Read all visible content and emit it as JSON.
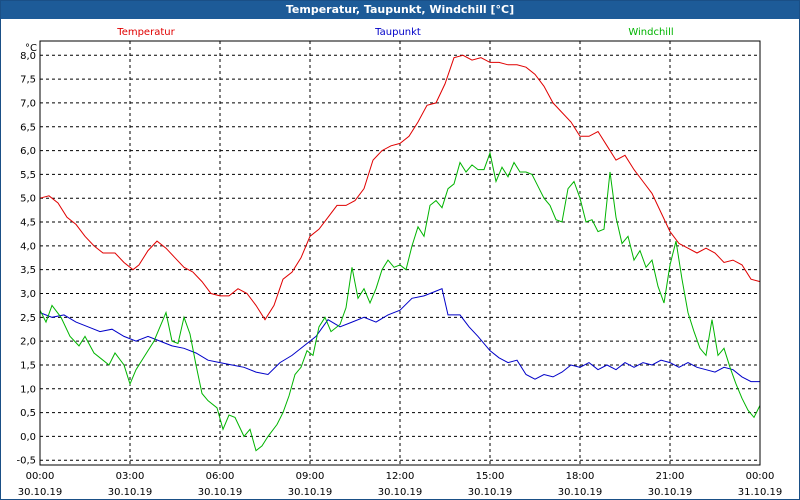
{
  "window": {
    "title": "Temperatur, Taupunkt, Windchill [°C]"
  },
  "chart_data": {
    "type": "line",
    "ylabel": "°C",
    "ylim": [
      -0.6,
      8.3
    ],
    "y_ticks": [
      "8,0",
      "7,5",
      "7,0",
      "6,5",
      "6,0",
      "5,5",
      "5,0",
      "4,5",
      "4,0",
      "3,5",
      "3,0",
      "2,5",
      "2,0",
      "1,5",
      "1,0",
      "0,5",
      "0,0",
      "-0,5"
    ],
    "y_tick_values": [
      8.0,
      7.5,
      7.0,
      6.5,
      6.0,
      5.5,
      5.0,
      4.5,
      4.0,
      3.5,
      3.0,
      2.5,
      2.0,
      1.5,
      1.0,
      0.5,
      0.0,
      -0.5
    ],
    "xlim": [
      0,
      24
    ],
    "x_ticks": [
      {
        "time": "00:00",
        "date": "30.10.19",
        "h": 0
      },
      {
        "time": "03:00",
        "date": "30.10.19",
        "h": 3
      },
      {
        "time": "06:00",
        "date": "30.10.19",
        "h": 6
      },
      {
        "time": "09:00",
        "date": "30.10.19",
        "h": 9
      },
      {
        "time": "12:00",
        "date": "30.10.19",
        "h": 12
      },
      {
        "time": "15:00",
        "date": "30.10.19",
        "h": 15
      },
      {
        "time": "18:00",
        "date": "30.10.19",
        "h": 18
      },
      {
        "time": "21:00",
        "date": "30.10.19",
        "h": 21
      },
      {
        "time": "00:00",
        "date": "31.10.19",
        "h": 24
      }
    ],
    "grid": true,
    "legend_position": "top",
    "series": [
      {
        "name": "Temperatur",
        "color": "#e00000",
        "points": [
          [
            0,
            5.0
          ],
          [
            0.3,
            5.05
          ],
          [
            0.6,
            4.9
          ],
          [
            0.9,
            4.6
          ],
          [
            1.2,
            4.45
          ],
          [
            1.5,
            4.2
          ],
          [
            1.8,
            4.0
          ],
          [
            2.1,
            3.85
          ],
          [
            2.5,
            3.85
          ],
          [
            2.8,
            3.65
          ],
          [
            3.1,
            3.5
          ],
          [
            3.3,
            3.6
          ],
          [
            3.6,
            3.9
          ],
          [
            3.9,
            4.1
          ],
          [
            4.2,
            3.95
          ],
          [
            4.5,
            3.75
          ],
          [
            4.8,
            3.55
          ],
          [
            5.1,
            3.45
          ],
          [
            5.4,
            3.25
          ],
          [
            5.7,
            3.0
          ],
          [
            6.0,
            2.95
          ],
          [
            6.3,
            2.95
          ],
          [
            6.6,
            3.1
          ],
          [
            6.9,
            3.0
          ],
          [
            7.2,
            2.75
          ],
          [
            7.5,
            2.45
          ],
          [
            7.8,
            2.75
          ],
          [
            8.1,
            3.3
          ],
          [
            8.4,
            3.45
          ],
          [
            8.7,
            3.75
          ],
          [
            9.0,
            4.2
          ],
          [
            9.3,
            4.35
          ],
          [
            9.6,
            4.6
          ],
          [
            9.9,
            4.85
          ],
          [
            10.2,
            4.85
          ],
          [
            10.5,
            4.95
          ],
          [
            10.8,
            5.2
          ],
          [
            11.1,
            5.8
          ],
          [
            11.4,
            6.0
          ],
          [
            11.7,
            6.1
          ],
          [
            12.0,
            6.15
          ],
          [
            12.3,
            6.3
          ],
          [
            12.6,
            6.6
          ],
          [
            12.9,
            6.95
          ],
          [
            13.2,
            7.0
          ],
          [
            13.5,
            7.4
          ],
          [
            13.8,
            7.95
          ],
          [
            14.1,
            8.0
          ],
          [
            14.4,
            7.9
          ],
          [
            14.7,
            7.95
          ],
          [
            15.0,
            7.85
          ],
          [
            15.3,
            7.85
          ],
          [
            15.6,
            7.8
          ],
          [
            15.9,
            7.8
          ],
          [
            16.2,
            7.75
          ],
          [
            16.5,
            7.6
          ],
          [
            16.8,
            7.35
          ],
          [
            17.1,
            7.0
          ],
          [
            17.4,
            6.8
          ],
          [
            17.7,
            6.6
          ],
          [
            18.0,
            6.3
          ],
          [
            18.3,
            6.3
          ],
          [
            18.6,
            6.4
          ],
          [
            18.9,
            6.1
          ],
          [
            19.2,
            5.8
          ],
          [
            19.5,
            5.9
          ],
          [
            19.8,
            5.6
          ],
          [
            20.1,
            5.35
          ],
          [
            20.4,
            5.1
          ],
          [
            20.7,
            4.7
          ],
          [
            21.0,
            4.3
          ],
          [
            21.3,
            4.05
          ],
          [
            21.6,
            3.95
          ],
          [
            21.9,
            3.85
          ],
          [
            22.2,
            3.95
          ],
          [
            22.5,
            3.85
          ],
          [
            22.8,
            3.65
          ],
          [
            23.1,
            3.7
          ],
          [
            23.4,
            3.6
          ],
          [
            23.7,
            3.3
          ],
          [
            24.0,
            3.25
          ]
        ]
      },
      {
        "name": "Taupunkt",
        "color": "#0000c8",
        "points": [
          [
            0,
            2.6
          ],
          [
            0.4,
            2.5
          ],
          [
            0.8,
            2.55
          ],
          [
            1.2,
            2.4
          ],
          [
            1.6,
            2.3
          ],
          [
            2.0,
            2.2
          ],
          [
            2.4,
            2.25
          ],
          [
            2.8,
            2.1
          ],
          [
            3.2,
            2.0
          ],
          [
            3.6,
            2.1
          ],
          [
            4.0,
            2.0
          ],
          [
            4.4,
            1.9
          ],
          [
            4.8,
            1.85
          ],
          [
            5.2,
            1.75
          ],
          [
            5.6,
            1.6
          ],
          [
            6.0,
            1.55
          ],
          [
            6.4,
            1.5
          ],
          [
            6.8,
            1.45
          ],
          [
            7.2,
            1.35
          ],
          [
            7.6,
            1.3
          ],
          [
            8.0,
            1.55
          ],
          [
            8.4,
            1.7
          ],
          [
            8.8,
            1.9
          ],
          [
            9.2,
            2.1
          ],
          [
            9.6,
            2.45
          ],
          [
            10.0,
            2.3
          ],
          [
            10.4,
            2.4
          ],
          [
            10.8,
            2.5
          ],
          [
            11.2,
            2.4
          ],
          [
            11.6,
            2.55
          ],
          [
            12.0,
            2.65
          ],
          [
            12.4,
            2.9
          ],
          [
            12.8,
            2.95
          ],
          [
            13.2,
            3.05
          ],
          [
            13.4,
            3.1
          ],
          [
            13.6,
            2.55
          ],
          [
            14.0,
            2.55
          ],
          [
            14.3,
            2.3
          ],
          [
            14.6,
            2.1
          ],
          [
            15.0,
            1.8
          ],
          [
            15.3,
            1.65
          ],
          [
            15.6,
            1.55
          ],
          [
            15.9,
            1.6
          ],
          [
            16.2,
            1.3
          ],
          [
            16.5,
            1.2
          ],
          [
            16.8,
            1.3
          ],
          [
            17.1,
            1.25
          ],
          [
            17.4,
            1.35
          ],
          [
            17.7,
            1.5
          ],
          [
            18.0,
            1.45
          ],
          [
            18.3,
            1.55
          ],
          [
            18.6,
            1.4
          ],
          [
            18.9,
            1.5
          ],
          [
            19.2,
            1.4
          ],
          [
            19.5,
            1.55
          ],
          [
            19.8,
            1.45
          ],
          [
            20.1,
            1.55
          ],
          [
            20.4,
            1.5
          ],
          [
            20.7,
            1.6
          ],
          [
            21.0,
            1.55
          ],
          [
            21.3,
            1.45
          ],
          [
            21.6,
            1.55
          ],
          [
            21.9,
            1.45
          ],
          [
            22.2,
            1.4
          ],
          [
            22.5,
            1.35
          ],
          [
            22.8,
            1.45
          ],
          [
            23.1,
            1.4
          ],
          [
            23.4,
            1.25
          ],
          [
            23.7,
            1.15
          ],
          [
            24.0,
            1.15
          ]
        ]
      },
      {
        "name": "Windchill",
        "color": "#00b400",
        "points": [
          [
            0,
            2.65
          ],
          [
            0.2,
            2.4
          ],
          [
            0.4,
            2.75
          ],
          [
            0.7,
            2.5
          ],
          [
            1.0,
            2.1
          ],
          [
            1.3,
            1.9
          ],
          [
            1.5,
            2.1
          ],
          [
            1.8,
            1.75
          ],
          [
            2.1,
            1.6
          ],
          [
            2.3,
            1.5
          ],
          [
            2.5,
            1.75
          ],
          [
            2.8,
            1.5
          ],
          [
            3.0,
            1.1
          ],
          [
            3.2,
            1.4
          ],
          [
            3.5,
            1.7
          ],
          [
            3.8,
            2.0
          ],
          [
            4.0,
            2.3
          ],
          [
            4.2,
            2.6
          ],
          [
            4.4,
            2.0
          ],
          [
            4.6,
            1.95
          ],
          [
            4.8,
            2.5
          ],
          [
            5.0,
            2.15
          ],
          [
            5.2,
            1.5
          ],
          [
            5.4,
            0.9
          ],
          [
            5.6,
            0.75
          ],
          [
            5.9,
            0.6
          ],
          [
            6.1,
            0.15
          ],
          [
            6.3,
            0.45
          ],
          [
            6.5,
            0.4
          ],
          [
            6.8,
            0.0
          ],
          [
            7.0,
            0.15
          ],
          [
            7.2,
            -0.3
          ],
          [
            7.4,
            -0.2
          ],
          [
            7.6,
            0.0
          ],
          [
            7.9,
            0.25
          ],
          [
            8.1,
            0.5
          ],
          [
            8.3,
            0.85
          ],
          [
            8.5,
            1.3
          ],
          [
            8.7,
            1.45
          ],
          [
            8.9,
            1.8
          ],
          [
            9.1,
            1.7
          ],
          [
            9.3,
            2.3
          ],
          [
            9.5,
            2.5
          ],
          [
            9.7,
            2.2
          ],
          [
            10.0,
            2.35
          ],
          [
            10.2,
            2.7
          ],
          [
            10.4,
            3.55
          ],
          [
            10.6,
            2.9
          ],
          [
            10.8,
            3.1
          ],
          [
            11.0,
            2.8
          ],
          [
            11.2,
            3.1
          ],
          [
            11.4,
            3.5
          ],
          [
            11.6,
            3.7
          ],
          [
            11.8,
            3.55
          ],
          [
            12.0,
            3.6
          ],
          [
            12.2,
            3.5
          ],
          [
            12.4,
            4.0
          ],
          [
            12.6,
            4.4
          ],
          [
            12.8,
            4.2
          ],
          [
            13.0,
            4.85
          ],
          [
            13.2,
            4.95
          ],
          [
            13.4,
            4.8
          ],
          [
            13.6,
            5.2
          ],
          [
            13.8,
            5.3
          ],
          [
            14.0,
            5.75
          ],
          [
            14.2,
            5.55
          ],
          [
            14.4,
            5.7
          ],
          [
            14.6,
            5.6
          ],
          [
            14.8,
            5.6
          ],
          [
            15.0,
            5.95
          ],
          [
            15.2,
            5.35
          ],
          [
            15.4,
            5.65
          ],
          [
            15.6,
            5.45
          ],
          [
            15.8,
            5.75
          ],
          [
            16.0,
            5.55
          ],
          [
            16.2,
            5.55
          ],
          [
            16.4,
            5.5
          ],
          [
            16.6,
            5.25
          ],
          [
            16.8,
            5.0
          ],
          [
            17.0,
            4.85
          ],
          [
            17.2,
            4.55
          ],
          [
            17.4,
            4.5
          ],
          [
            17.6,
            5.2
          ],
          [
            17.8,
            5.35
          ],
          [
            18.0,
            5.0
          ],
          [
            18.2,
            4.5
          ],
          [
            18.4,
            4.55
          ],
          [
            18.6,
            4.3
          ],
          [
            18.8,
            4.35
          ],
          [
            19.0,
            5.55
          ],
          [
            19.2,
            4.6
          ],
          [
            19.4,
            4.05
          ],
          [
            19.6,
            4.2
          ],
          [
            19.8,
            3.7
          ],
          [
            20.0,
            3.9
          ],
          [
            20.2,
            3.55
          ],
          [
            20.4,
            3.7
          ],
          [
            20.6,
            3.15
          ],
          [
            20.8,
            2.8
          ],
          [
            21.0,
            3.6
          ],
          [
            21.2,
            4.1
          ],
          [
            21.4,
            3.3
          ],
          [
            21.6,
            2.6
          ],
          [
            21.8,
            2.2
          ],
          [
            22.0,
            1.85
          ],
          [
            22.2,
            1.7
          ],
          [
            22.4,
            2.45
          ],
          [
            22.6,
            1.7
          ],
          [
            22.8,
            1.85
          ],
          [
            23.0,
            1.45
          ],
          [
            23.2,
            1.1
          ],
          [
            23.4,
            0.8
          ],
          [
            23.6,
            0.55
          ],
          [
            23.8,
            0.4
          ],
          [
            24.0,
            0.65
          ]
        ]
      }
    ]
  }
}
